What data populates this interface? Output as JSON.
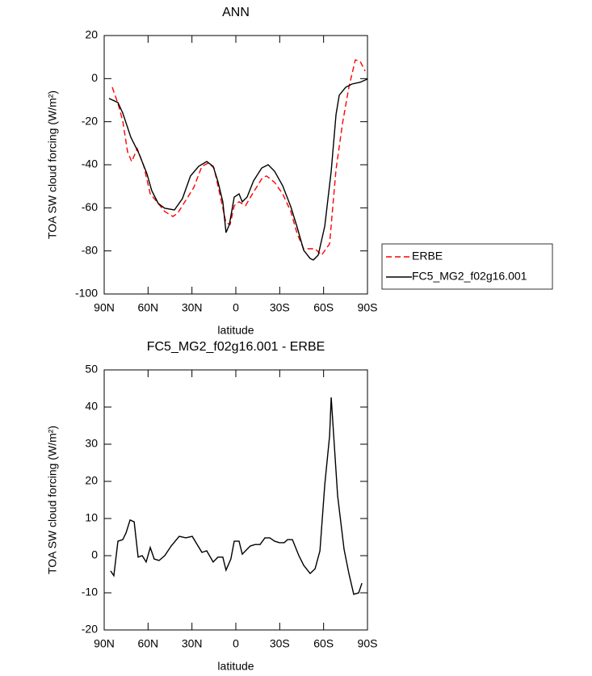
{
  "chart_data": [
    {
      "type": "line",
      "title": "ANN",
      "xlabel": "latitude",
      "ylabel": "TOA SW cloud forcing (W/m²)",
      "xlim": [
        90,
        -90
      ],
      "xticks": [
        {
          "value": 90,
          "label": "90N"
        },
        {
          "value": 60,
          "label": "60N"
        },
        {
          "value": 30,
          "label": "30N"
        },
        0,
        {
          "value": -30,
          "label": "30S"
        },
        {
          "value": -60,
          "label": "60S"
        },
        {
          "value": -90,
          "label": "90S"
        }
      ],
      "ylim": [
        -100,
        20
      ],
      "yticks": [
        -100,
        -80,
        -60,
        -40,
        -20,
        0,
        20
      ],
      "legend": "right",
      "series": [
        {
          "name": "ERBE",
          "color": "#ff0000",
          "style": "dashed",
          "x": [
            84.5,
            80.6,
            77.3,
            74,
            71.2,
            67.4,
            63,
            58.5,
            53,
            48.6,
            43,
            39.8,
            34.2,
            28.7,
            23.2,
            18.8,
            14.9,
            11,
            6.7,
            3.9,
            1.1,
            -2.2,
            -6.6,
            -12.1,
            -18.2,
            -21,
            -26.5,
            -32,
            -37.6,
            -42,
            -46.4,
            -54.2,
            -58.6,
            -64.1,
            -68.5,
            -73,
            -77.3,
            -81.7,
            -85,
            -88.4
          ],
          "values": [
            -4,
            -11.5,
            -19.7,
            -34,
            -38.5,
            -32.5,
            -40.4,
            -53.5,
            -58,
            -61.7,
            -64,
            -62.5,
            -56.5,
            -50.5,
            -40.7,
            -39.2,
            -41.5,
            -53.5,
            -67,
            -67.7,
            -59,
            -57.2,
            -59,
            -52.7,
            -46,
            -45.2,
            -48.2,
            -53.5,
            -61.7,
            -72.2,
            -79,
            -79,
            -82,
            -76.7,
            -42.2,
            -20.5,
            -4,
            8.7,
            8,
            3.5
          ]
        },
        {
          "name": "FC5_MG2_f02g16.001",
          "color": "#000000",
          "style": "solid",
          "x": [
            86.7,
            80.6,
            77.3,
            71.8,
            66.3,
            60.8,
            57.5,
            53,
            48.6,
            42,
            36.5,
            31,
            25.4,
            19.9,
            15.5,
            12.2,
            8.9,
            6.7,
            4.4,
            1.1,
            -2.2,
            -4.4,
            -7.7,
            -12.1,
            -17.7,
            -22.1,
            -26.5,
            -32,
            -37.6,
            -42,
            -46.4,
            -50.8,
            -53,
            -56.3,
            -60.8,
            -65.2,
            -68.5,
            -70.7,
            -75.1,
            -79.5,
            -85,
            -90
          ],
          "values": [
            -9.2,
            -11.1,
            -16,
            -27.2,
            -34.7,
            -44.1,
            -52,
            -58,
            -60.2,
            -61,
            -55.7,
            -45.2,
            -40.7,
            -38.5,
            -40.7,
            -47.9,
            -57.2,
            -71.5,
            -67.7,
            -55,
            -53.5,
            -57.2,
            -55,
            -47.5,
            -41.5,
            -40,
            -43,
            -49.7,
            -59.5,
            -69.2,
            -79.7,
            -83.5,
            -84.2,
            -82,
            -68.5,
            -43,
            -16.7,
            -7.7,
            -4,
            -2.5,
            -1.7,
            -0.2
          ]
        }
      ]
    },
    {
      "type": "line",
      "title": "FC5_MG2_f02g16.001 - ERBE",
      "xlabel": "latitude",
      "ylabel": "TOA SW cloud forcing (W/m²)",
      "xlim": [
        90,
        -90
      ],
      "xticks": [
        {
          "value": 90,
          "label": "90N"
        },
        {
          "value": 60,
          "label": "60N"
        },
        {
          "value": 30,
          "label": "30N"
        },
        0,
        {
          "value": -30,
          "label": "30S"
        },
        {
          "value": -60,
          "label": "60S"
        },
        {
          "value": -90,
          "label": "90S"
        }
      ],
      "ylim": [
        -20,
        50
      ],
      "yticks": [
        -20,
        -10,
        0,
        10,
        20,
        30,
        40,
        50
      ],
      "color": "#000000",
      "x": [
        85.6,
        83.4,
        80.6,
        77.3,
        75.1,
        72.3,
        69.5,
        66.8,
        64,
        61.3,
        58.5,
        55.8,
        52.5,
        48.6,
        44.2,
        38.7,
        34.2,
        29.8,
        23.2,
        19.9,
        15.5,
        12.2,
        8.9,
        6.7,
        3.4,
        1.1,
        -2.2,
        -4.4,
        -9.9,
        -13.2,
        -16.6,
        -19.9,
        -23.2,
        -26.5,
        -29.8,
        -33.1,
        -35.3,
        -38.7,
        -43.1,
        -46.4,
        -50.8,
        -54.2,
        -57.5,
        -60.8,
        -64.1,
        -65.2,
        -69.6,
        -74,
        -77.3,
        -80.6,
        -84,
        -86.2
      ],
      "values": [
        -4.1,
        -5.4,
        3.9,
        4.3,
        6.1,
        9.6,
        9.1,
        -0.4,
        0,
        -1.7,
        2.2,
        -0.9,
        -1.3,
        0,
        2.6,
        5.2,
        4.8,
        5.2,
        0.9,
        1.3,
        -1.7,
        -0.4,
        -0.4,
        -3.9,
        -0.9,
        3.9,
        3.9,
        0.4,
        2.6,
        3,
        3,
        4.8,
        4.8,
        3.9,
        3.5,
        3.5,
        4.3,
        4.3,
        0,
        -2.6,
        -4.8,
        -3.5,
        1.3,
        19.1,
        32.2,
        42.6,
        16.1,
        1.7,
        -4.8,
        -10.4,
        -10,
        -7.4
      ]
    }
  ]
}
